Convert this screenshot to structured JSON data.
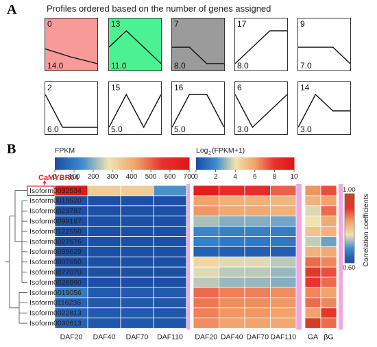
{
  "panel_a": {
    "letter": "A",
    "title": "Profiles ordered based on the number of genes assigned",
    "profiles": [
      {
        "id": "0",
        "value": "14.0",
        "fill": "#f99a9a",
        "points": [
          0.55,
          0.8,
          1.0
        ]
      },
      {
        "id": "13",
        "value": "11.0",
        "fill": "#4cf291",
        "points": [
          0.5,
          0.0,
          0.5,
          1.0
        ]
      },
      {
        "id": "7",
        "value": "8.0",
        "fill": "#9b9b9b",
        "points": [
          0.5,
          0.5,
          1.0,
          1.0
        ]
      },
      {
        "id": "17",
        "value": "8.0",
        "fill": "#ffffff",
        "points": [
          1.0,
          0.5,
          0.0,
          0.0
        ]
      },
      {
        "id": "9",
        "value": "7.0",
        "fill": "#ffffff",
        "points": [
          0.5,
          0.5,
          0.5,
          1.0
        ]
      },
      {
        "id": "2",
        "value": "6.0",
        "fill": "#ffffff",
        "points": [
          0.0,
          1.0,
          1.0,
          1.0
        ]
      },
      {
        "id": "15",
        "value": "5.0",
        "fill": "#ffffff",
        "points": [
          1.0,
          0.0,
          1.0,
          0.0
        ]
      },
      {
        "id": "16",
        "value": "5.0",
        "fill": "#ffffff",
        "points": [
          1.0,
          0.0,
          0.0,
          1.0
        ]
      },
      {
        "id": "6",
        "value": "3.0",
        "fill": "#ffffff",
        "points": [
          0.0,
          1.0,
          0.5,
          0.0
        ]
      },
      {
        "id": "14",
        "value": "3.0",
        "fill": "#ffffff",
        "points": [
          1.0,
          0.0,
          0.5,
          0.5
        ]
      }
    ]
  },
  "panel_b": {
    "letter": "B",
    "highlight_gene": "CaMYBR04",
    "colors": {
      "highlight": "#d9252b",
      "frame": "#f0a8e2"
    }
  },
  "chart_data": [
    {
      "type": "heatmap",
      "name": "FPKM",
      "legend_title": "FPKM",
      "scale_ticks": [
        "0",
        "100",
        "200",
        "300",
        "400",
        "500",
        "600",
        "700"
      ],
      "range": [
        0,
        700
      ],
      "colormap": [
        "#1b4ea6",
        "#3d8ccc",
        "#f1e3b0",
        "#f0a36c",
        "#e8332e",
        "#dd1717"
      ],
      "rows": [
        "Isoform0032534",
        "Isoform0019520",
        "Isoform0023787",
        "Isoform0099167",
        "Isoform0122550",
        "Isoform0027576",
        "Isoform0039629",
        "Isoform0007650",
        "Isoform0077070",
        "Isoform0026990",
        "Isoform0019056",
        "Isoform0116236",
        "Isoform0022813",
        "Isoform0030613"
      ],
      "columns": [
        "DAF20",
        "DAF40",
        "DAF70",
        "DAF110"
      ],
      "values": [
        [
          680,
          330,
          330,
          150
        ],
        [
          5,
          5,
          5,
          5
        ],
        [
          5,
          5,
          5,
          5
        ],
        [
          5,
          5,
          5,
          5
        ],
        [
          5,
          5,
          5,
          5
        ],
        [
          5,
          5,
          5,
          5
        ],
        [
          5,
          5,
          5,
          5
        ],
        [
          5,
          5,
          5,
          5
        ],
        [
          5,
          5,
          5,
          5
        ],
        [
          5,
          5,
          5,
          5
        ],
        [
          100,
          30,
          30,
          30
        ],
        [
          50,
          25,
          25,
          20
        ],
        [
          50,
          25,
          25,
          20
        ],
        [
          45,
          20,
          20,
          18
        ]
      ]
    },
    {
      "type": "heatmap",
      "name": "Log2(FPKM+1)",
      "legend_title": "Log",
      "legend_sub": "2",
      "legend_tail": "(FPKM+1)",
      "scale_ticks": [
        "0",
        "2",
        "4",
        "6",
        "8",
        "10"
      ],
      "range": [
        0,
        10
      ],
      "colormap": [
        "#1b4ea6",
        "#3d8ccc",
        "#f1e3b0",
        "#f0a36c",
        "#e8332e",
        "#dd1717"
      ],
      "columns": [
        "DAF20",
        "DAF40",
        "DAF70",
        "DAF110"
      ],
      "values": [
        [
          9.4,
          8.4,
          8.4,
          7.2
        ],
        [
          6.0,
          5.6,
          5.6,
          5.4
        ],
        [
          6.2,
          5.8,
          5.8,
          5.6
        ],
        [
          3.2,
          2.8,
          2.8,
          2.6
        ],
        [
          1.8,
          1.6,
          1.6,
          1.5
        ],
        [
          1.6,
          1.4,
          1.4,
          1.3
        ],
        [
          0.6,
          0.5,
          0.5,
          0.5
        ],
        [
          4.4,
          3.8,
          3.8,
          3.4
        ],
        [
          3.8,
          3.4,
          3.4,
          3.0
        ],
        [
          3.4,
          3.0,
          3.0,
          2.8
        ],
        [
          7.0,
          6.6,
          6.6,
          6.4
        ],
        [
          6.8,
          6.4,
          6.4,
          6.2
        ],
        [
          6.6,
          6.2,
          6.2,
          6.0
        ],
        [
          6.4,
          6.0,
          6.0,
          5.8
        ]
      ]
    },
    {
      "type": "heatmap",
      "name": "Correlation coefficients",
      "legend_title": "Correlation coefficients",
      "scale_ticks": [
        "1.00",
        "0.60"
      ],
      "range": [
        0.6,
        1.0
      ],
      "colormap": [
        "#1b4ea6",
        "#3d8ccc",
        "#f1e3b0",
        "#f0a36c",
        "#e8332e",
        "#c04a1a"
      ],
      "columns": [
        "GA",
        "βG"
      ],
      "values": [
        [
          0.85,
          0.9
        ],
        [
          0.82,
          0.84
        ],
        [
          0.75,
          0.88
        ],
        [
          0.76,
          0.83
        ],
        [
          0.8,
          0.82
        ],
        [
          0.74,
          0.7
        ],
        [
          0.82,
          0.83
        ],
        [
          0.88,
          0.86
        ],
        [
          0.94,
          0.9
        ],
        [
          0.92,
          0.88
        ],
        [
          0.86,
          0.84
        ],
        [
          0.88,
          0.86
        ],
        [
          0.84,
          0.94
        ],
        [
          0.96,
          0.88
        ]
      ]
    }
  ]
}
